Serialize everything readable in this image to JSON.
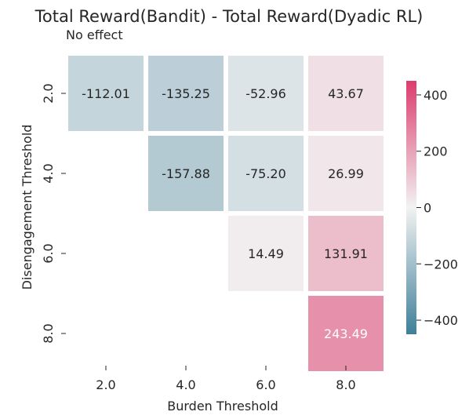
{
  "chart_data": {
    "type": "heatmap",
    "title": "Total Reward(Bandit) - Total Reward(Dyadic RL)",
    "annotation": "No effect",
    "xlabel": "Burden Threshold",
    "ylabel": "Disengagement Threshold",
    "x_categories": [
      "2.0",
      "4.0",
      "6.0",
      "8.0"
    ],
    "y_categories": [
      "2.0",
      "4.0",
      "6.0",
      "8.0"
    ],
    "values": [
      [
        -112.01,
        -135.25,
        -52.96,
        43.67
      ],
      [
        null,
        -157.88,
        -75.2,
        26.99
      ],
      [
        null,
        null,
        14.49,
        131.91
      ],
      [
        null,
        null,
        null,
        243.49
      ]
    ],
    "value_labels": [
      [
        "-112.01",
        "-135.25",
        "-52.96",
        "43.67"
      ],
      [
        "",
        "-157.88",
        "-75.20",
        "26.99"
      ],
      [
        "",
        "",
        "14.49",
        "131.91"
      ],
      [
        "",
        "",
        "",
        "243.49"
      ]
    ],
    "colorbar": {
      "vmin": -450,
      "vmax": 450,
      "ticks": [
        -400,
        -200,
        0,
        200,
        400
      ],
      "tick_labels": [
        "−400",
        "−200",
        "0",
        "200",
        "400"
      ]
    },
    "colormap": {
      "low": "#3f7f9a",
      "mid": "#f2f2f2",
      "high": "#dc3d6e"
    },
    "grid": false
  }
}
